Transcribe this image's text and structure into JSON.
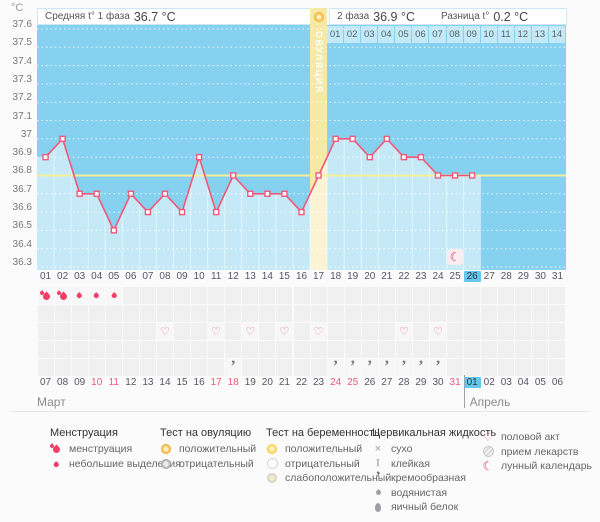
{
  "header": {
    "unit": "°C",
    "phase1_label": "Средняя t° 1 фаза",
    "phase1_value": "36.7 °C",
    "phase2_label": "2 фаза",
    "phase2_value": "36.9 °C",
    "diff_label": "Разница t°",
    "diff_value": "0.2 °C"
  },
  "chart_data": {
    "type": "line",
    "title": "Basal body temperature cycle chart",
    "ylabel": "°C",
    "ylim": [
      36.3,
      37.6
    ],
    "yticks": [
      "37.6",
      "37.5",
      "37.4",
      "37.3",
      "37.2",
      "37.1",
      "37",
      "36.9",
      "36.8",
      "36.7",
      "36.6",
      "36.5",
      "36.4",
      "36.3"
    ],
    "x": [
      1,
      2,
      3,
      4,
      5,
      6,
      7,
      8,
      9,
      10,
      11,
      12,
      13,
      14,
      15,
      16,
      17,
      18,
      19,
      20,
      21,
      22,
      23,
      24,
      25,
      26
    ],
    "values": [
      36.9,
      37.0,
      36.7,
      36.7,
      36.5,
      36.7,
      36.6,
      36.7,
      36.6,
      36.9,
      36.6,
      36.8,
      36.7,
      36.7,
      36.7,
      36.6,
      36.8,
      37.0,
      37.0,
      36.9,
      37.0,
      36.9,
      36.9,
      36.8,
      36.8,
      36.8
    ],
    "coverline": 36.8,
    "ovulation_day": 17,
    "ovulation_label": "ОВУЛЯЦИЯ",
    "cycle_days": [
      "01",
      "02",
      "03",
      "04",
      "05",
      "06",
      "07",
      "08",
      "09",
      "10",
      "11",
      "12",
      "13",
      "14",
      "15",
      "16",
      "17",
      "18",
      "19",
      "20",
      "21",
      "22",
      "23",
      "24",
      "25",
      "26",
      "27",
      "28",
      "29",
      "30",
      "31"
    ],
    "highlighted_cycle_day": 26,
    "dpo_days": [
      "01",
      "02",
      "03",
      "04",
      "05",
      "06",
      "07",
      "08",
      "09",
      "10",
      "11",
      "12",
      "13",
      "14"
    ],
    "moon_marker_day": 25,
    "grid": "dotted-white",
    "legend_position": "bottom"
  },
  "day_rows": [
    {
      "name": "menstruation-row",
      "icons": {
        "1": "drop-big",
        "2": "drop-big",
        "3": "drop-small",
        "4": "drop-small",
        "5": "drop-small"
      }
    },
    {
      "name": "ovulation-test-row",
      "icons": {}
    },
    {
      "name": "intercourse-row",
      "icons": {
        "8": "heart",
        "11": "heart",
        "13": "heart",
        "15": "heart",
        "17": "heart",
        "22": "heart",
        "24": "heart"
      }
    },
    {
      "name": "pregnancy-test-row",
      "icons": {}
    },
    {
      "name": "cervical-fluid-row",
      "icons": {
        "12": "comma",
        "18": "comma",
        "19": "comma",
        "20": "comma",
        "21": "comma",
        "22": "comma",
        "23": "comma",
        "24": "comma"
      }
    }
  ],
  "calendar": {
    "march_label": "Март",
    "april_label": "Апрель",
    "april_start_index": 25,
    "dates": [
      {
        "d": "07"
      },
      {
        "d": "08"
      },
      {
        "d": "09"
      },
      {
        "d": "10",
        "red": true
      },
      {
        "d": "11",
        "red": true
      },
      {
        "d": "12"
      },
      {
        "d": "13"
      },
      {
        "d": "14"
      },
      {
        "d": "15"
      },
      {
        "d": "16"
      },
      {
        "d": "17",
        "red": true
      },
      {
        "d": "18",
        "red": true
      },
      {
        "d": "19"
      },
      {
        "d": "20"
      },
      {
        "d": "21"
      },
      {
        "d": "22"
      },
      {
        "d": "23"
      },
      {
        "d": "24",
        "red": true
      },
      {
        "d": "25",
        "red": true
      },
      {
        "d": "26"
      },
      {
        "d": "27"
      },
      {
        "d": "28"
      },
      {
        "d": "29"
      },
      {
        "d": "30"
      },
      {
        "d": "31",
        "red": true
      },
      {
        "d": "01",
        "today": true
      },
      {
        "d": "02"
      },
      {
        "d": "03"
      },
      {
        "d": "04"
      },
      {
        "d": "05"
      },
      {
        "d": "06"
      }
    ]
  },
  "legend": [
    {
      "title": "Менструация",
      "items": [
        {
          "icon": "drop-big",
          "label": "менструация"
        },
        {
          "icon": "drop-small",
          "label": "небольшие выделения"
        }
      ]
    },
    {
      "title": "Тест на овуляцию",
      "items": [
        {
          "icon": "ovu-positive",
          "label": "положительный"
        },
        {
          "icon": "ovu-negative",
          "label": "отрицательный"
        }
      ]
    },
    {
      "title": "Тест на беременность",
      "items": [
        {
          "icon": "preg-positive",
          "label": "положительный"
        },
        {
          "icon": "preg-negative",
          "label": "отрицательный"
        },
        {
          "icon": "preg-weak",
          "label": "слабоположительный"
        }
      ]
    },
    {
      "title": "Цервикальная жидкость",
      "items": [
        {
          "icon": "cf-dry",
          "label": "сухо"
        },
        {
          "icon": "cf-sticky",
          "label": "клейкая"
        },
        {
          "icon": "comma",
          "label": "кремообразная"
        },
        {
          "icon": "cf-watery",
          "label": "водянистая"
        },
        {
          "icon": "cf-eggwhite",
          "label": "яичный белок"
        }
      ]
    },
    {
      "title": "",
      "items": [
        {
          "icon": "heart",
          "label": "половой акт"
        },
        {
          "icon": "meds",
          "label": "прием лекарств"
        },
        {
          "icon": "moon",
          "label": "лунный календарь"
        }
      ]
    }
  ],
  "colors": {
    "chart_bg": "#86d1ef",
    "area_fill_overlay": "rgba(255,255,255,0.52)",
    "ovulation_band": "#f6e9a5",
    "coverline": "#f3f09a",
    "curve": "#f25878",
    "highlight_day": "#64c7ef",
    "menstruation": "#ef3f68",
    "weekend_red": "#f25878"
  }
}
